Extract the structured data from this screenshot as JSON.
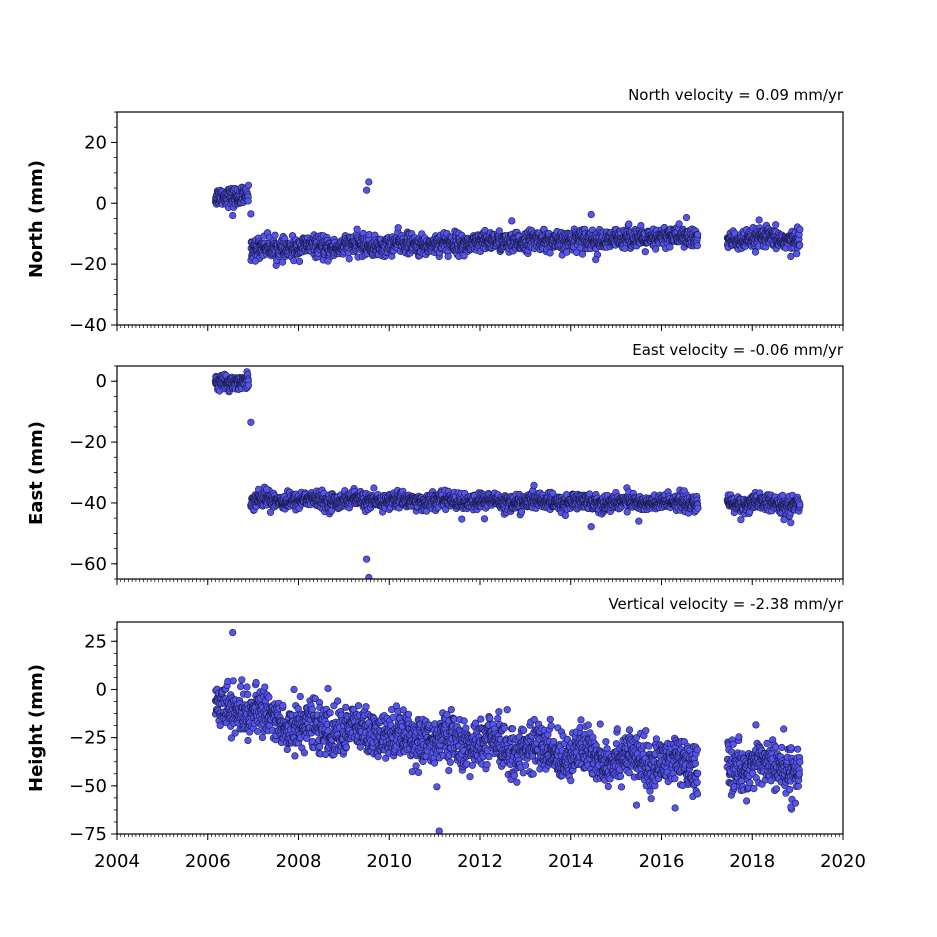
{
  "colors": {
    "marker_fill": "#5555ee",
    "marker_edge": "#1a1a4a",
    "axes": "#000000",
    "background": "#ffffff"
  },
  "chart_data": [
    {
      "type": "scatter",
      "panel": "north",
      "ylabel": "North (mm)",
      "annotation": "North velocity = 0.09 mm/yr",
      "xlim": [
        2004,
        2020
      ],
      "ylim": [
        -40,
        30
      ],
      "yticks": [
        -40,
        -20,
        0,
        20
      ],
      "ytick_labels": [
        "−40",
        "−20",
        "0",
        "20"
      ],
      "xticks": [
        2004,
        2006,
        2008,
        2010,
        2012,
        2014,
        2016,
        2018,
        2020
      ],
      "segments": [
        {
          "x_start": 2006.17,
          "x_end": 2006.9,
          "y_start": 1.5,
          "y_end": 3.0,
          "scatter": 1.5
        },
        {
          "x_start": 2006.95,
          "x_end": 2016.8,
          "y_start": -15.0,
          "y_end": -11.0,
          "scatter": 1.6
        },
        {
          "x_start": 2017.45,
          "x_end": 2019.05,
          "y_start": -12.0,
          "y_end": -11.5,
          "scatter": 1.5
        }
      ],
      "outliers": [
        {
          "x": 2009.55,
          "y": 7.0
        },
        {
          "x": 2009.5,
          "y": 4.3
        },
        {
          "x": 2006.55,
          "y": -4.0
        },
        {
          "x": 2006.95,
          "y": -3.5
        },
        {
          "x": 2014.45,
          "y": -3.7
        },
        {
          "x": 2016.55,
          "y": -4.7
        },
        {
          "x": 2012.7,
          "y": -5.8
        },
        {
          "x": 2018.15,
          "y": -5.5
        },
        {
          "x": 2007.05,
          "y": -19.0
        },
        {
          "x": 2008.65,
          "y": -19.0
        },
        {
          "x": 2014.55,
          "y": -18.5
        },
        {
          "x": 2018.85,
          "y": -17.5
        },
        {
          "x": 2011.3,
          "y": -17.5
        },
        {
          "x": 2011.65,
          "y": -17.3
        }
      ]
    },
    {
      "type": "scatter",
      "panel": "east",
      "ylabel": "East (mm)",
      "annotation": "East velocity = -0.06 mm/yr",
      "xlim": [
        2004,
        2020
      ],
      "ylim": [
        -65,
        5
      ],
      "yticks": [
        -60,
        -40,
        -20,
        0
      ],
      "ytick_labels": [
        "−60",
        "−40",
        "−20",
        "0"
      ],
      "xticks": [
        2004,
        2006,
        2008,
        2010,
        2012,
        2014,
        2016,
        2018,
        2020
      ],
      "segments": [
        {
          "x_start": 2006.17,
          "x_end": 2006.9,
          "y_start": -1.0,
          "y_end": 0.5,
          "scatter": 1.2
        },
        {
          "x_start": 2006.95,
          "x_end": 2016.8,
          "y_start": -39.0,
          "y_end": -40.0,
          "scatter": 1.3
        },
        {
          "x_start": 2017.45,
          "x_end": 2019.05,
          "y_start": -40.0,
          "y_end": -40.5,
          "scatter": 1.3
        }
      ],
      "outliers": [
        {
          "x": 2006.95,
          "y": -13.5
        },
        {
          "x": 2009.5,
          "y": -58.5
        },
        {
          "x": 2009.55,
          "y": -64.5
        },
        {
          "x": 2014.45,
          "y": -47.8
        },
        {
          "x": 2015.5,
          "y": -46.0
        },
        {
          "x": 2018.85,
          "y": -46.5
        },
        {
          "x": 2018.7,
          "y": -45.5
        },
        {
          "x": 2017.75,
          "y": -45.5
        },
        {
          "x": 2011.6,
          "y": -45.3
        },
        {
          "x": 2012.1,
          "y": -45.2
        },
        {
          "x": 2016.5,
          "y": -36.0
        },
        {
          "x": 2007.3,
          "y": -35.5
        }
      ]
    },
    {
      "type": "scatter",
      "panel": "height",
      "ylabel": "Height (mm)",
      "annotation": "Vertical velocity = -2.38 mm/yr",
      "xlim": [
        2004,
        2020
      ],
      "ylim": [
        -75,
        35
      ],
      "yticks": [
        -75,
        -50,
        -25,
        0,
        25
      ],
      "ytick_labels": [
        "−75",
        "−50",
        "−25",
        "0",
        "25"
      ],
      "xticks": [
        2004,
        2006,
        2008,
        2010,
        2012,
        2014,
        2016,
        2018,
        2020
      ],
      "xtick_labels": [
        "2004",
        "2006",
        "2008",
        "2010",
        "2012",
        "2014",
        "2016",
        "2018",
        "2020"
      ],
      "segments": [
        {
          "x_start": 2006.17,
          "x_end": 2007.6,
          "y_start": -8.0,
          "y_end": -15.0,
          "scatter": 5.5
        },
        {
          "x_start": 2007.6,
          "x_end": 2016.8,
          "y_start": -18.0,
          "y_end": -40.0,
          "scatter": 6.0
        },
        {
          "x_start": 2017.45,
          "x_end": 2019.05,
          "y_start": -39.0,
          "y_end": -40.0,
          "scatter": 6.0
        }
      ],
      "outliers": [
        {
          "x": 2006.55,
          "y": 29.5
        },
        {
          "x": 2011.1,
          "y": -73.5
        },
        {
          "x": 2011.05,
          "y": -50.5
        },
        {
          "x": 2015.45,
          "y": -60.0
        },
        {
          "x": 2016.3,
          "y": -61.5
        },
        {
          "x": 2018.85,
          "y": -61.0
        },
        {
          "x": 2018.95,
          "y": -59.0
        },
        {
          "x": 2007.9,
          "y": 0.0
        },
        {
          "x": 2008.65,
          "y": 0.5
        },
        {
          "x": 2014.65,
          "y": -18.0
        },
        {
          "x": 2013.55,
          "y": -15.5
        },
        {
          "x": 2012.6,
          "y": -10.5
        },
        {
          "x": 2006.75,
          "y": 5.0
        }
      ]
    }
  ]
}
